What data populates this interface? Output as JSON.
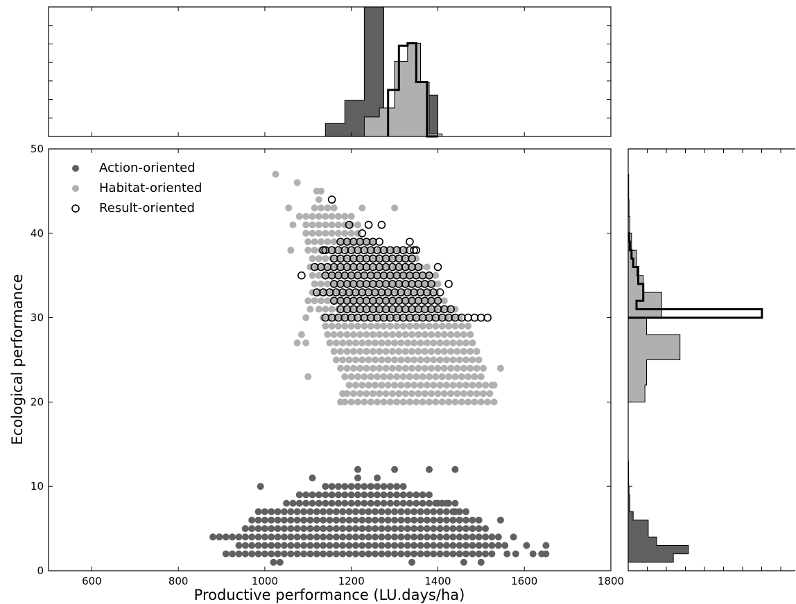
{
  "chart_data": {
    "type": "scatter",
    "xlabel": "Productive performance (LU.days/ha)",
    "ylabel": "Ecological performance",
    "xlim": [
      500,
      1800
    ],
    "ylim": [
      0,
      50
    ],
    "xticks": [
      600,
      800,
      1000,
      1200,
      1400,
      1600,
      1800
    ],
    "yticks": [
      0,
      10,
      20,
      30,
      40,
      50
    ],
    "legend_position": "top-left",
    "grid": false,
    "series": [
      {
        "name": "Action-oriented",
        "marker": "filled",
        "color": "#606060",
        "x_step": 15,
        "rows": [
          {
            "y": 2,
            "x": [
              925,
              1535
            ]
          },
          {
            "y": 3,
            "x": [
              940,
              1565
            ]
          },
          {
            "y": 4,
            "x": [
              895,
              1550
            ]
          },
          {
            "y": 5,
            "x": [
              955,
              1520
            ]
          },
          {
            "y": 6,
            "x": [
              970,
              1505
            ]
          },
          {
            "y": 7,
            "x": [
              985,
              1475
            ]
          },
          {
            "y": 8,
            "x": [
              1050,
              1440
            ]
          },
          {
            "y": 9,
            "x": [
              1080,
              1370
            ]
          },
          {
            "y": 10,
            "x": [
              1140,
              1320
            ]
          }
        ],
        "extra_points": [
          [
            880,
            4
          ],
          [
            910,
            2
          ],
          [
            1035,
            1
          ],
          [
            1020,
            1
          ],
          [
            1640,
            2
          ],
          [
            1620,
            2
          ],
          [
            1580,
            2
          ],
          [
            1650,
            2
          ],
          [
            1650,
            3
          ],
          [
            1605,
            3
          ],
          [
            1575,
            4
          ],
          [
            1340,
            1
          ],
          [
            1460,
            1
          ],
          [
            1500,
            1
          ],
          [
            1560,
            2
          ],
          [
            1545,
            6
          ],
          [
            1450,
            6
          ],
          [
            1440,
            7
          ],
          [
            1400,
            8
          ],
          [
            1380,
            9
          ],
          [
            1420,
            8
          ],
          [
            990,
            10
          ],
          [
            1110,
            11
          ],
          [
            1215,
            11
          ],
          [
            1260,
            11
          ],
          [
            1380,
            12
          ],
          [
            1440,
            12
          ],
          [
            1300,
            12
          ],
          [
            1215,
            12
          ]
        ]
      },
      {
        "name": "Habitat-oriented",
        "marker": "filled",
        "color": "#b0b0b0",
        "x_step": 15,
        "rows": [
          {
            "y": 20,
            "x": [
              1185,
              1530
            ]
          },
          {
            "y": 21,
            "x": [
              1190,
              1520
            ]
          },
          {
            "y": 22,
            "x": [
              1195,
              1530
            ]
          },
          {
            "y": 23,
            "x": [
              1185,
              1505
            ]
          },
          {
            "y": 24,
            "x": [
              1175,
              1505
            ]
          },
          {
            "y": 25,
            "x": [
              1165,
              1505
            ]
          },
          {
            "y": 26,
            "x": [
              1160,
              1500
            ]
          },
          {
            "y": 27,
            "x": [
              1150,
              1490
            ]
          },
          {
            "y": 28,
            "x": [
              1145,
              1480
            ]
          },
          {
            "y": 29,
            "x": [
              1140,
              1470
            ]
          },
          {
            "y": 30,
            "x": [
              1135,
              1455
            ]
          },
          {
            "y": 31,
            "x": [
              1125,
              1440
            ]
          },
          {
            "y": 32,
            "x": [
              1115,
              1420
            ]
          },
          {
            "y": 33,
            "x": [
              1110,
              1405
            ]
          },
          {
            "y": 34,
            "x": [
              1115,
              1400
            ]
          },
          {
            "y": 35,
            "x": [
              1110,
              1395
            ]
          },
          {
            "y": 36,
            "x": [
              1105,
              1380
            ]
          },
          {
            "y": 37,
            "x": [
              1110,
              1360
            ]
          },
          {
            "y": 38,
            "x": [
              1100,
              1335
            ]
          },
          {
            "y": 39,
            "x": [
              1100,
              1250
            ]
          },
          {
            "y": 40,
            "x": [
              1095,
              1220
            ]
          },
          {
            "y": 41,
            "x": [
              1095,
              1220
            ]
          },
          {
            "y": 42,
            "x": [
              1095,
              1200
            ]
          },
          {
            "y": 43,
            "x": [
              1115,
              1170
            ]
          }
        ],
        "extra_points": [
          [
            1025,
            47
          ],
          [
            1075,
            46
          ],
          [
            1120,
            45
          ],
          [
            1130,
            45
          ],
          [
            1055,
            43
          ],
          [
            1125,
            44
          ],
          [
            1080,
            42
          ],
          [
            1065,
            41
          ],
          [
            1060,
            38
          ],
          [
            1100,
            32
          ],
          [
            1105,
            31
          ],
          [
            1095,
            30
          ],
          [
            1085,
            28
          ],
          [
            1075,
            27
          ],
          [
            1095,
            27
          ],
          [
            1100,
            23
          ],
          [
            1180,
            21
          ],
          [
            1175,
            20
          ],
          [
            1545,
            24
          ],
          [
            1530,
            22
          ],
          [
            1390,
            34
          ],
          [
            1300,
            43
          ],
          [
            1225,
            43
          ]
        ]
      },
      {
        "name": "Result-oriented",
        "marker": "open",
        "color": "#000000",
        "x_step": 15,
        "rows": [
          {
            "y": 30,
            "x": [
              1140,
              1500
            ]
          },
          {
            "y": 31,
            "x": [
              1175,
              1440
            ]
          },
          {
            "y": 32,
            "x": [
              1160,
              1410
            ]
          },
          {
            "y": 33,
            "x": [
              1120,
              1410
            ]
          },
          {
            "y": 34,
            "x": [
              1160,
              1390
            ]
          },
          {
            "y": 35,
            "x": [
              1140,
              1390
            ]
          },
          {
            "y": 36,
            "x": [
              1115,
              1360
            ]
          },
          {
            "y": 37,
            "x": [
              1160,
              1340
            ]
          },
          {
            "y": 38,
            "x": [
              1140,
              1360
            ]
          },
          {
            "y": 39,
            "x": [
              1175,
              1270
            ]
          }
        ],
        "extra_points": [
          [
            1085,
            35
          ],
          [
            1135,
            38
          ],
          [
            1155,
            44
          ],
          [
            1195,
            41
          ],
          [
            1240,
            41
          ],
          [
            1270,
            41
          ],
          [
            1225,
            40
          ],
          [
            1335,
            39
          ],
          [
            1345,
            38
          ],
          [
            1400,
            36
          ],
          [
            1425,
            34
          ],
          [
            1515,
            30
          ]
        ]
      }
    ],
    "x_histogram": {
      "Action-oriented": {
        "edges": [
          1140,
          1185,
          1230,
          1275,
          1325,
          1370,
          1400
        ],
        "counts": [
          0.1,
          0.28,
          1.0,
          0.0,
          0.0,
          0.32
        ]
      },
      "Habitat-oriented": {
        "edges": [
          1230,
          1265,
          1300,
          1330,
          1360,
          1380,
          1410
        ],
        "counts": [
          0.15,
          0.22,
          0.58,
          0.72,
          0.42,
          0.02
        ]
      },
      "Result-oriented": {
        "edges": [
          1285,
          1310,
          1330,
          1350,
          1375,
          1400
        ],
        "counts": [
          0.36,
          0.7,
          0.72,
          0.42,
          0.0
        ]
      }
    },
    "y_histogram": {
      "Action-oriented": {
        "edges": [
          1,
          2,
          3,
          4,
          5,
          6,
          7,
          8,
          9,
          10,
          11,
          12,
          13
        ],
        "counts": [
          0.27,
          0.36,
          0.17,
          0.12,
          0.12,
          0.03,
          0.01,
          0.01,
          0.005,
          0.003,
          0.002,
          0.002
        ]
      },
      "Habitat-oriented": {
        "edges": [
          20,
          22,
          25,
          28,
          30,
          33,
          35,
          38,
          40,
          42,
          44,
          47
        ],
        "counts": [
          0.1,
          0.11,
          0.31,
          0.11,
          0.2,
          0.09,
          0.05,
          0.02,
          0.01,
          0.005,
          0.003
        ]
      },
      "Result-oriented": {
        "edges": [
          30,
          31,
          32,
          33,
          34,
          35,
          36,
          37,
          38,
          39,
          40
        ],
        "counts": [
          0.8,
          0.05,
          0.09,
          0.09,
          0.06,
          0.06,
          0.03,
          0.02,
          0.01,
          0.005
        ]
      }
    }
  }
}
